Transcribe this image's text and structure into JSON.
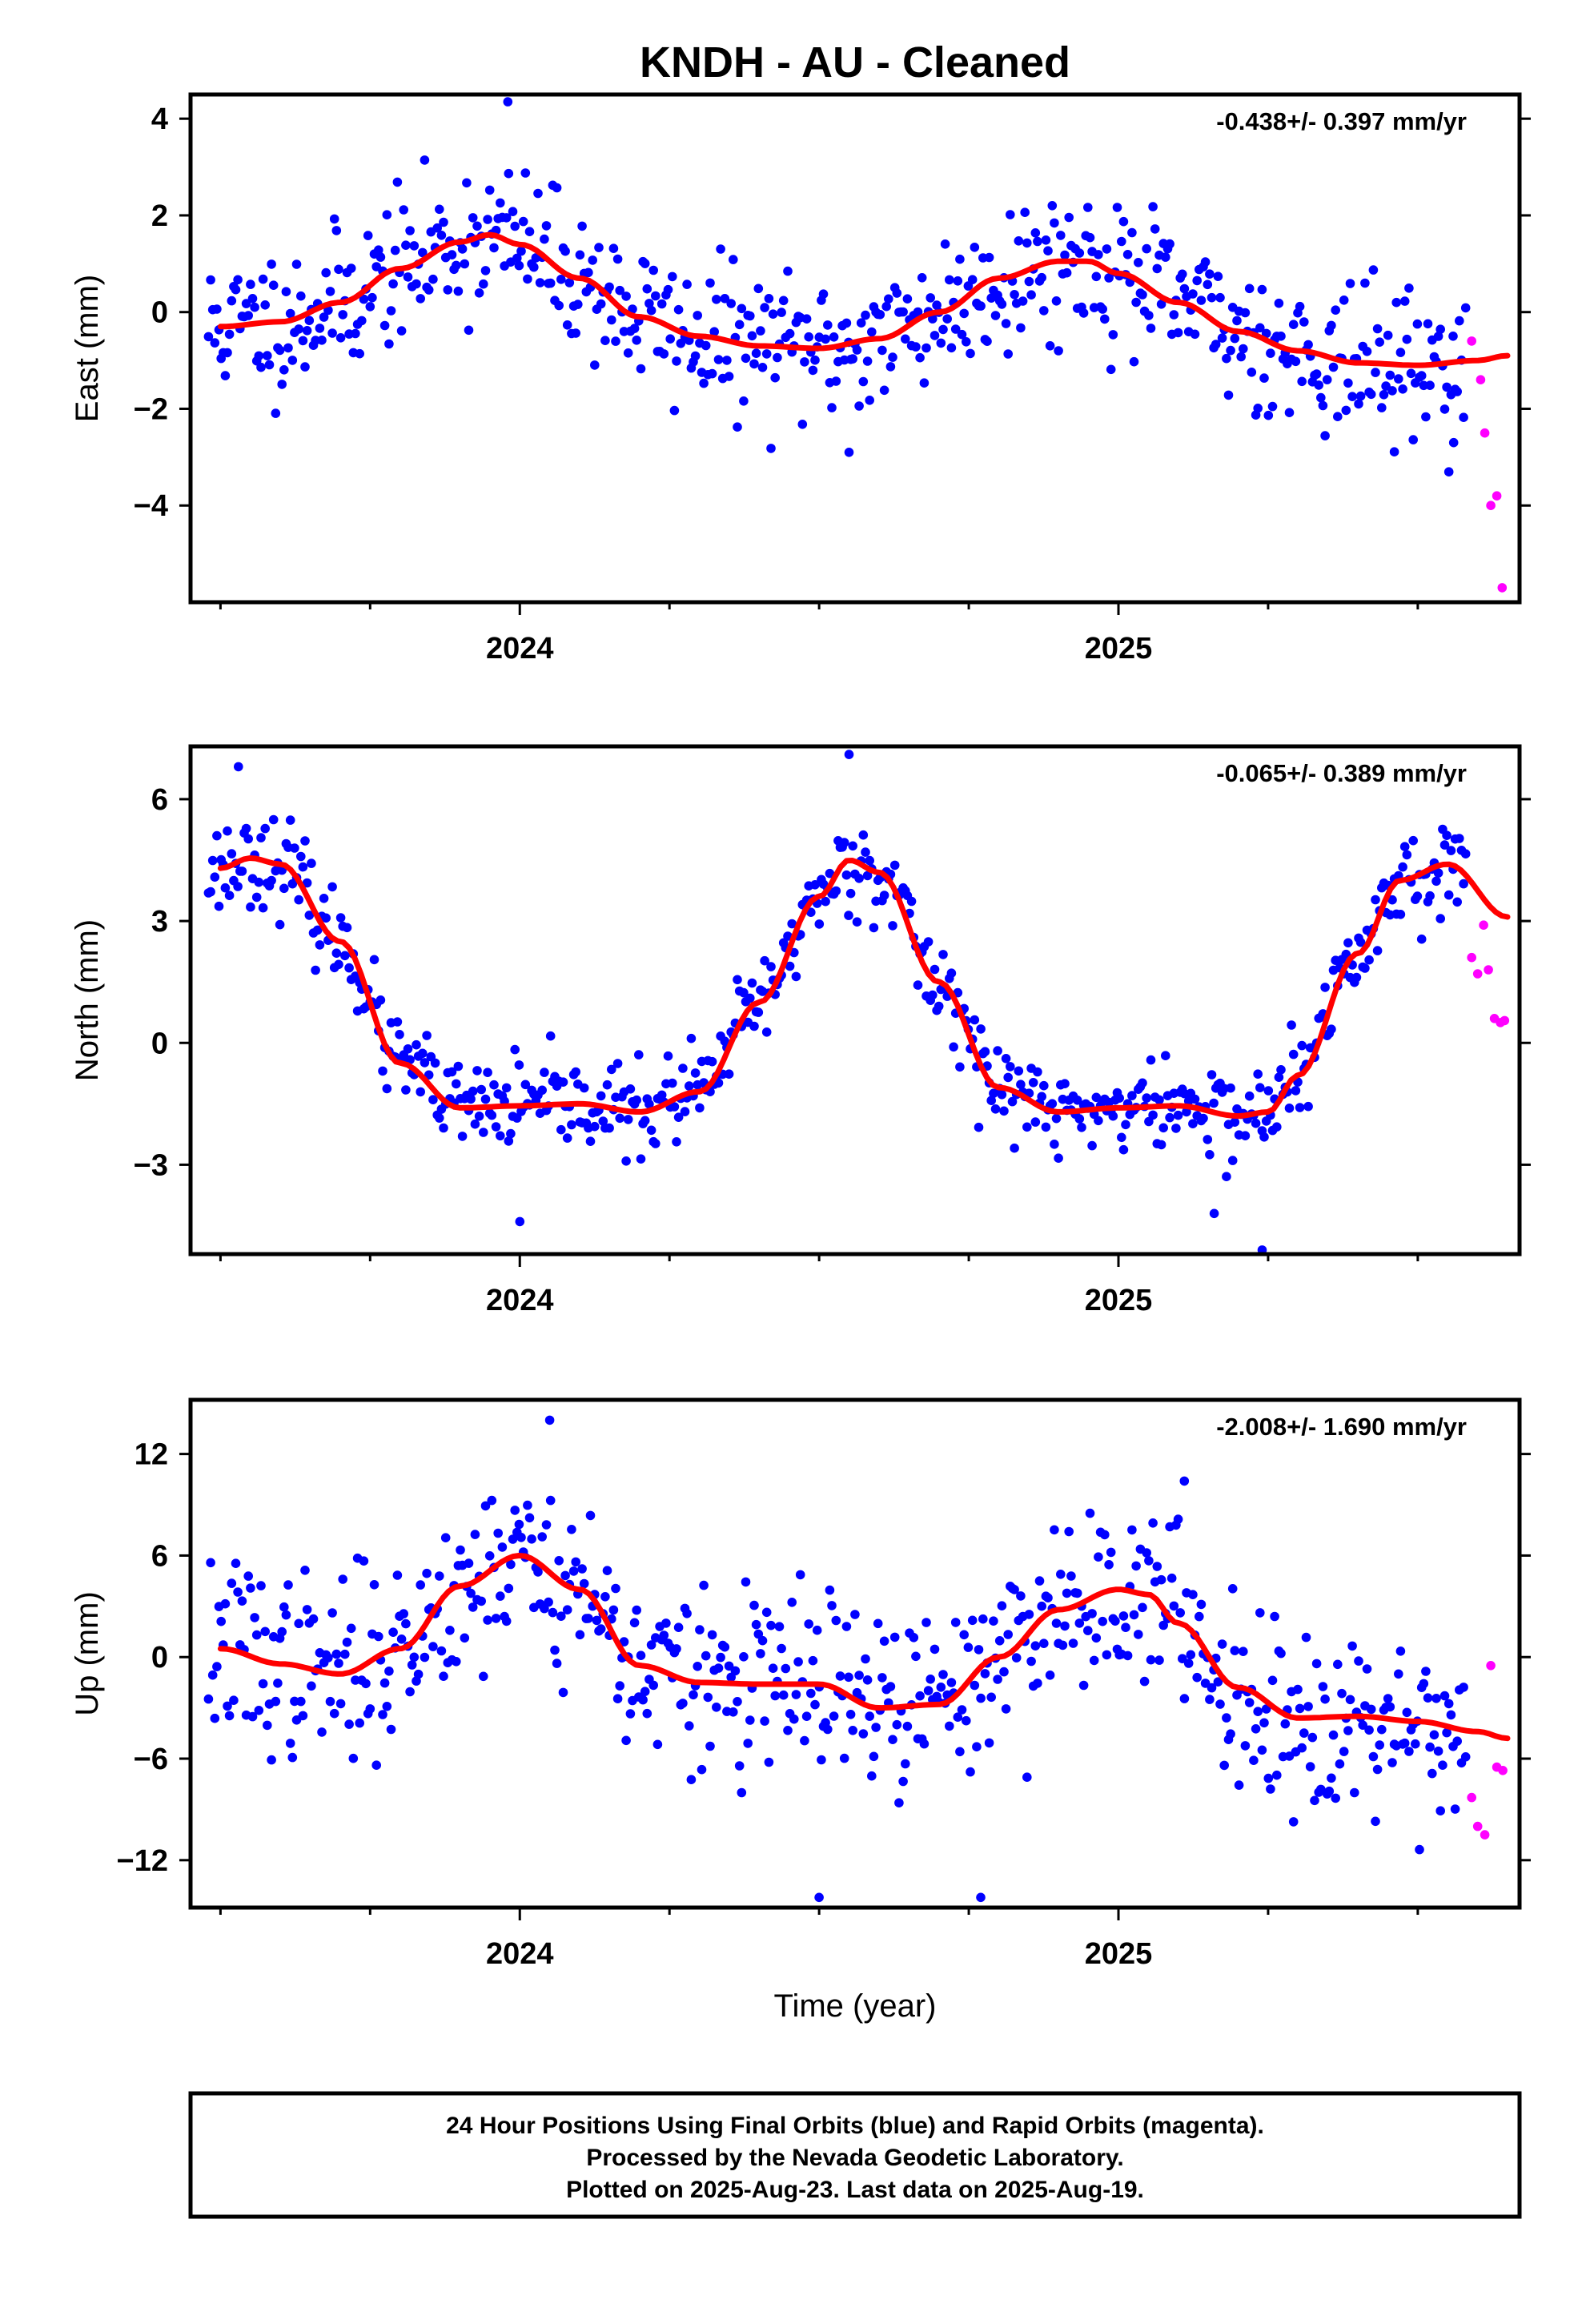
{
  "figure": {
    "title": "KNDH  - AU - Cleaned",
    "xlabel": "Time (year)",
    "footer": [
      "24 Hour Positions Using Final Orbits (blue) and Rapid Orbits (magenta).",
      "Processed by the Nevada Geodetic Laboratory.",
      "Plotted on 2025-Aug-23. Last data on 2025-Aug-19."
    ]
  },
  "colors": {
    "final": "#0000ff",
    "rapid": "#ff00ff",
    "fit": "#ff0000",
    "frame": "#000000"
  },
  "chart_data": [
    {
      "type": "scatter",
      "id": "east",
      "ylabel": "East (mm)",
      "rate_label": "-0.438+/- 0.397 mm/yr",
      "xlim": [
        2023.45,
        2025.67
      ],
      "ylim": [
        -6,
        4.5
      ],
      "yticks": [
        -4,
        -2,
        0,
        2,
        4
      ],
      "yticklabels": [
        "−4",
        "−2",
        "0",
        "2",
        "4"
      ],
      "xticks_major": [
        2024,
        2025
      ],
      "xticklabels": [
        "2024",
        "2025"
      ],
      "xticks_minor": [
        2023.5,
        2023.75,
        2024.25,
        2024.5,
        2024.75,
        2025.25,
        2025.5
      ],
      "trend": {
        "x": [
          2023.5,
          2023.6,
          2023.7,
          2023.8,
          2023.9,
          2023.95,
          2024.0,
          2024.1,
          2024.2,
          2024.3,
          2024.4,
          2024.5,
          2024.6,
          2024.7,
          2024.8,
          2024.9,
          2024.95,
          2025.0,
          2025.1,
          2025.2,
          2025.3,
          2025.4,
          2025.5,
          2025.6,
          2025.65
        ],
        "y": [
          -0.3,
          -0.2,
          0.2,
          0.9,
          1.45,
          1.6,
          1.4,
          0.7,
          -0.1,
          -0.5,
          -0.7,
          -0.75,
          -0.55,
          0.0,
          0.7,
          1.05,
          1.05,
          0.8,
          0.2,
          -0.4,
          -0.8,
          -1.05,
          -1.1,
          -1.0,
          -0.9
        ]
      },
      "final_series": {
        "x_start": 2023.48,
        "x_end": 2025.58,
        "count": 600,
        "seed": 11,
        "noise_sd": 0.75,
        "extremes": [
          [
            2023.98,
            4.35
          ],
          [
            2024.55,
            -2.9
          ],
          [
            2025.56,
            -2.7
          ]
        ]
      },
      "rapid_points": {
        "x": [
          2025.59,
          2025.605,
          2025.612,
          2025.622,
          2025.632,
          2025.641
        ],
        "y": [
          -0.6,
          -1.4,
          -2.5,
          -4.0,
          -3.8,
          -5.7
        ]
      }
    },
    {
      "type": "scatter",
      "id": "north",
      "ylabel": "North (mm)",
      "rate_label": "-0.065+/- 0.389 mm/yr",
      "xlim": [
        2023.45,
        2025.67
      ],
      "ylim": [
        -5.2,
        7.3
      ],
      "yticks": [
        -3,
        0,
        3,
        6
      ],
      "yticklabels": [
        "−3",
        "0",
        "3",
        "6"
      ],
      "xticks_major": [
        2024,
        2025
      ],
      "xticklabels": [
        "2024",
        "2025"
      ],
      "xticks_minor": [
        2023.5,
        2023.75,
        2024.25,
        2024.5,
        2024.75,
        2025.25,
        2025.5
      ],
      "trend": {
        "x": [
          2023.5,
          2023.55,
          2023.6,
          2023.7,
          2023.8,
          2023.9,
          2024.0,
          2024.1,
          2024.2,
          2024.3,
          2024.4,
          2024.5,
          2024.55,
          2024.6,
          2024.7,
          2024.8,
          2024.9,
          2025.0,
          2025.1,
          2025.2,
          2025.25,
          2025.3,
          2025.4,
          2025.47,
          2025.55,
          2025.65
        ],
        "y": [
          4.3,
          4.55,
          4.4,
          2.5,
          -0.5,
          -1.6,
          -1.55,
          -1.5,
          -1.7,
          -1.2,
          1.0,
          3.6,
          4.5,
          4.2,
          1.5,
          -1.1,
          -1.7,
          -1.6,
          -1.55,
          -1.8,
          -1.7,
          -0.8,
          2.2,
          4.0,
          4.4,
          3.1
        ]
      },
      "final_series": {
        "x_start": 2023.48,
        "x_end": 2025.58,
        "count": 600,
        "seed": 23,
        "noise_sd": 0.55,
        "extremes": [
          [
            2023.53,
            6.8
          ],
          [
            2024.55,
            7.1
          ],
          [
            2024.0,
            -4.4
          ],
          [
            2025.24,
            -5.1
          ],
          [
            2025.16,
            -4.2
          ]
        ]
      },
      "rapid_points": {
        "x": [
          2025.59,
          2025.6,
          2025.61,
          2025.618,
          2025.628,
          2025.638,
          2025.645
        ],
        "y": [
          2.1,
          1.7,
          2.9,
          1.8,
          0.6,
          0.5,
          0.55
        ]
      }
    },
    {
      "type": "scatter",
      "id": "up",
      "ylabel": "Up (mm)",
      "rate_label": "-2.008+/- 1.690 mm/yr",
      "xlim": [
        2023.45,
        2025.67
      ],
      "ylim": [
        -14.8,
        15.2
      ],
      "yticks": [
        -12,
        -6,
        0,
        6,
        12
      ],
      "yticklabels": [
        "−12",
        "−6",
        "0",
        "6",
        "12"
      ],
      "xticks_major": [
        2024,
        2025
      ],
      "xticklabels": [
        "2024",
        "2025"
      ],
      "xticks_minor": [
        2023.5,
        2023.75,
        2024.25,
        2024.5,
        2024.75,
        2025.25,
        2025.5
      ],
      "trend": {
        "x": [
          2023.5,
          2023.6,
          2023.7,
          2023.8,
          2023.9,
          2024.0,
          2024.1,
          2024.2,
          2024.3,
          2024.4,
          2024.5,
          2024.6,
          2024.7,
          2024.8,
          2024.9,
          2025.0,
          2025.05,
          2025.1,
          2025.2,
          2025.3,
          2025.4,
          2025.5,
          2025.6,
          2025.65
        ],
        "y": [
          0.5,
          -0.4,
          -1.0,
          0.5,
          4.2,
          6.0,
          4.0,
          -0.5,
          -1.5,
          -1.6,
          -1.6,
          -3.0,
          -2.8,
          0.0,
          2.8,
          4.0,
          3.7,
          2.0,
          -1.8,
          -3.6,
          -3.5,
          -3.8,
          -4.4,
          -4.8
        ]
      },
      "final_series": {
        "x_start": 2023.48,
        "x_end": 2025.58,
        "count": 600,
        "seed": 37,
        "noise_sd": 2.7,
        "extremes": [
          [
            2024.05,
            14.0
          ],
          [
            2024.5,
            -14.2
          ],
          [
            2024.77,
            -14.2
          ],
          [
            2025.11,
            10.4
          ]
        ]
      },
      "rapid_points": {
        "x": [
          2025.59,
          2025.6,
          2025.612,
          2025.622,
          2025.632,
          2025.642
        ],
        "y": [
          -8.3,
          -10.0,
          -10.5,
          -0.5,
          -6.5,
          -6.7
        ]
      }
    }
  ]
}
